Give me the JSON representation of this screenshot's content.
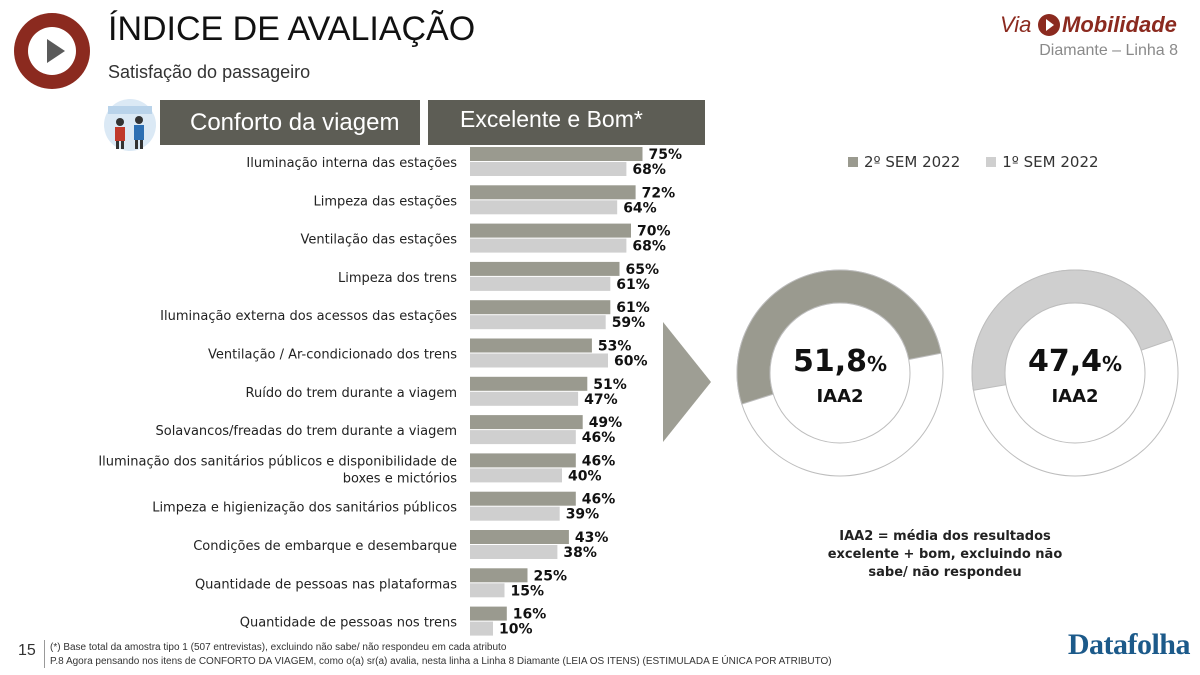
{
  "header": {
    "title": "ÍNDICE DE AVALIAÇÃO",
    "subtitle": "Satisfação do passageiro",
    "brand_prefix": "Via",
    "brand_name": "Mobilidade",
    "line_label": "Diamante – Linha 8"
  },
  "section": {
    "category_label": "Conforto da viagem",
    "metric_label": "Excelente e Bom*"
  },
  "colors": {
    "current": "#9a9a8f",
    "previous": "#cfcfcf",
    "band": "#5d5d55",
    "brand": "#8b2a1f"
  },
  "chart_data": [
    {
      "type": "bar",
      "orientation": "horizontal",
      "categories": [
        "Iluminação interna das estações",
        "Limpeza das estações",
        "Ventilação das estações",
        "Limpeza dos trens",
        "Iluminação externa dos acessos das estações",
        "Ventilação / Ar-condicionado dos trens",
        "Ruído do trem durante a viagem",
        "Solavancos/freadas do trem durante a viagem",
        "Iluminação dos sanitários públicos e disponibilidade de boxes e mictórios",
        "Limpeza e higienização dos sanitários públicos",
        "Condições de embarque e desembarque",
        "Quantidade de pessoas nas plataformas",
        "Quantidade de pessoas nos trens"
      ],
      "category_lines": [
        [
          "Iluminação interna das estações"
        ],
        [
          "Limpeza das estações"
        ],
        [
          "Ventilação das estações"
        ],
        [
          "Limpeza dos trens"
        ],
        [
          "Iluminação externa dos acessos das estações"
        ],
        [
          "Ventilação / Ar-condicionado dos trens"
        ],
        [
          "Ruído do trem durante a viagem"
        ],
        [
          "Solavancos/freadas do trem durante a viagem"
        ],
        [
          "Iluminação dos sanitários públicos e disponibilidade de",
          "boxes e mictórios"
        ],
        [
          "Limpeza e higienização dos sanitários públicos"
        ],
        [
          "Condições de embarque e desembarque"
        ],
        [
          "Quantidade de pessoas nas plataformas"
        ],
        [
          "Quantidade de pessoas nos trens"
        ]
      ],
      "series": [
        {
          "name": "2º SEM 2022",
          "values": [
            75,
            72,
            70,
            65,
            61,
            53,
            51,
            49,
            46,
            46,
            43,
            25,
            16
          ]
        },
        {
          "name": "1º SEM 2022",
          "values": [
            68,
            64,
            68,
            61,
            59,
            60,
            47,
            46,
            40,
            39,
            38,
            15,
            10
          ]
        }
      ],
      "unit": "%",
      "xlim": [
        0,
        100
      ],
      "legend": "top-right"
    },
    {
      "type": "pie",
      "variant": "donut",
      "series_name": "2º SEM 2022",
      "value": 51.8,
      "value_label": "51,8",
      "unit": "%",
      "caption": "IAA2"
    },
    {
      "type": "pie",
      "variant": "donut",
      "series_name": "1º SEM 2022",
      "value": 47.4,
      "value_label": "47,4",
      "unit": "%",
      "caption": "IAA2"
    }
  ],
  "iaa_note": "IAA2 = média dos resultados excelente + bom, excluindo não sabe/ não respondeu",
  "footer": {
    "page_number": "15",
    "note1": "(*) Base total da amostra tipo 1 (507 entrevistas), excluindo não sabe/ não respondeu em cada atributo",
    "note2": "P.8 Agora pensando nos itens de CONFORTO DA VIAGEM, como o(a) sr(a) avalia, nesta linha a Linha 8 Diamante (LEIA OS ITENS) (ESTIMULADA E ÚNICA POR ATRIBUTO)",
    "source_logo": "Datafolha"
  }
}
